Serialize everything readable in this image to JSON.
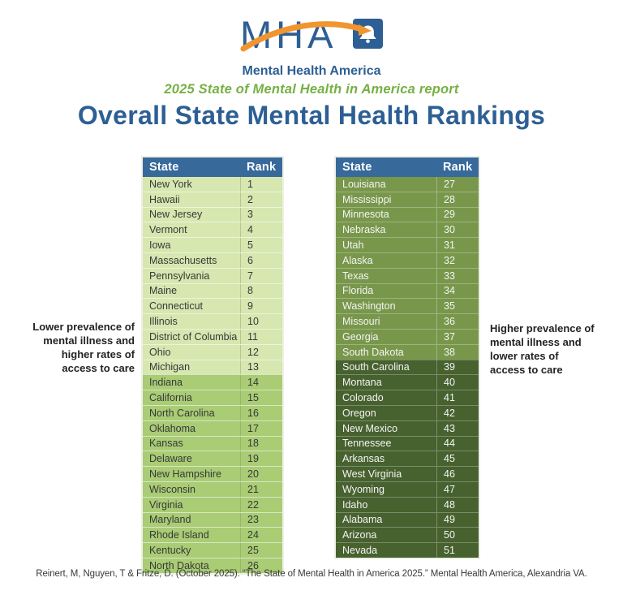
{
  "logo": {
    "acronym": "MHA",
    "name": "Mental Health America"
  },
  "header": {
    "subtitle": "2025 State of Mental Health in America report",
    "title": "Overall State Mental Health Rankings"
  },
  "annotations": {
    "left": [
      "Lower prevalence of",
      "mental illness and",
      "higher rates of",
      "access to care"
    ],
    "right": [
      "Higher prevalence of",
      "mental illness and",
      "lower rates of",
      "access to care"
    ]
  },
  "chart_data": {
    "type": "table",
    "title": "Overall State Mental Health Rankings",
    "columns": [
      "State",
      "Rank"
    ],
    "panels": [
      {
        "side": "left",
        "groups": [
          {
            "tier": "best",
            "bg": "#d6e7b0",
            "text": "#383838",
            "rows": [
              [
                "New York",
                1
              ],
              [
                "Hawaii",
                2
              ],
              [
                "New Jersey",
                3
              ],
              [
                "Vermont",
                4
              ],
              [
                "Iowa",
                5
              ],
              [
                "Massachusetts",
                6
              ],
              [
                "Pennsylvania",
                7
              ],
              [
                "Maine",
                8
              ],
              [
                "Connecticut",
                9
              ],
              [
                "Illinois",
                10
              ],
              [
                "District of Columbia",
                11
              ],
              [
                "Ohio",
                12
              ],
              [
                "Michigan",
                13
              ]
            ]
          },
          {
            "tier": "upper-middle",
            "bg": "#a9cc75",
            "text": "#383838",
            "rows": [
              [
                "Indiana",
                14
              ],
              [
                "California",
                15
              ],
              [
                "North Carolina",
                16
              ],
              [
                "Oklahoma",
                17
              ],
              [
                "Kansas",
                18
              ],
              [
                "Delaware",
                19
              ],
              [
                "New Hampshire",
                20
              ],
              [
                "Wisconsin",
                21
              ],
              [
                "Virginia",
                22
              ],
              [
                "Maryland",
                23
              ],
              [
                "Rhode Island",
                24
              ],
              [
                "Kentucky",
                25
              ],
              [
                "North Dakota",
                26
              ]
            ]
          }
        ]
      },
      {
        "side": "right",
        "groups": [
          {
            "tier": "lower-middle",
            "bg": "#78974b",
            "text": "#f4f4f4",
            "rows": [
              [
                "Louisiana",
                27
              ],
              [
                "Mississippi",
                28
              ],
              [
                "Minnesota",
                29
              ],
              [
                "Nebraska",
                30
              ],
              [
                "Utah",
                31
              ],
              [
                "Alaska",
                32
              ],
              [
                "Texas",
                33
              ],
              [
                "Florida",
                34
              ],
              [
                "Washington",
                35
              ],
              [
                "Missouri",
                36
              ],
              [
                "Georgia",
                37
              ],
              [
                "South Dakota",
                38
              ]
            ]
          },
          {
            "tier": "worst",
            "bg": "#47612f",
            "text": "#f4f4f4",
            "rows": [
              [
                "South Carolina",
                39
              ],
              [
                "Montana",
                40
              ],
              [
                "Colorado",
                41
              ],
              [
                "Oregon",
                42
              ],
              [
                "New Mexico",
                43
              ],
              [
                "Tennessee",
                44
              ],
              [
                "Arkansas",
                45
              ],
              [
                "West Virginia",
                46
              ],
              [
                "Wyoming",
                47
              ],
              [
                "Idaho",
                48
              ],
              [
                "Alabama",
                49
              ],
              [
                "Arizona",
                50
              ],
              [
                "Nevada",
                51
              ]
            ]
          }
        ]
      }
    ]
  },
  "citation": "Reinert, M, Nguyen, T & Fritze, D. (October 2025). “The State of Mental Health in America 2025.” Mental Health America, Alexandria VA.",
  "colors": {
    "brand_blue": "#2d5f94",
    "table_header_bg": "#376a9b",
    "accent_green": "#76b043",
    "swoosh_orange": "#f0952f",
    "tier_best": "#d6e7b0",
    "tier_upper_middle": "#a9cc75",
    "tier_lower_middle": "#78974b",
    "tier_worst": "#47612f"
  }
}
